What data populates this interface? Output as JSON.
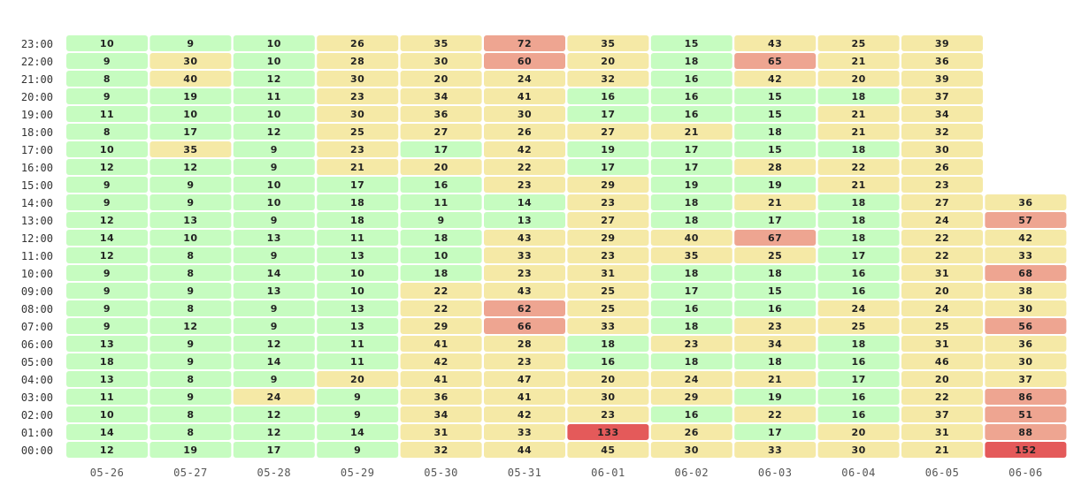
{
  "chart_data": {
    "type": "heatmap",
    "x": [
      "05-26",
      "05-27",
      "05-28",
      "05-29",
      "05-30",
      "05-31",
      "06-01",
      "06-02",
      "06-03",
      "06-04",
      "06-05",
      "06-06"
    ],
    "y": [
      "00:00",
      "01:00",
      "02:00",
      "03:00",
      "04:00",
      "05:00",
      "06:00",
      "07:00",
      "08:00",
      "09:00",
      "10:00",
      "11:00",
      "12:00",
      "13:00",
      "14:00",
      "15:00",
      "16:00",
      "17:00",
      "18:00",
      "19:00",
      "20:00",
      "21:00",
      "22:00",
      "23:00"
    ],
    "values": [
      [
        12,
        14,
        10,
        11,
        13,
        18,
        13,
        9,
        9,
        9,
        9,
        12,
        14,
        12,
        9,
        9,
        12,
        10,
        8,
        11,
        9,
        8,
        9,
        10
      ],
      [
        19,
        8,
        8,
        9,
        8,
        9,
        9,
        12,
        8,
        9,
        8,
        8,
        10,
        13,
        9,
        9,
        12,
        35,
        17,
        10,
        19,
        40,
        30,
        9
      ],
      [
        17,
        12,
        12,
        24,
        9,
        14,
        12,
        9,
        9,
        13,
        14,
        9,
        13,
        9,
        10,
        10,
        9,
        9,
        12,
        10,
        11,
        12,
        10,
        10
      ],
      [
        9,
        14,
        9,
        9,
        20,
        11,
        11,
        13,
        13,
        10,
        10,
        13,
        11,
        18,
        18,
        17,
        21,
        23,
        25,
        30,
        23,
        30,
        28,
        26
      ],
      [
        32,
        31,
        34,
        36,
        41,
        42,
        41,
        29,
        22,
        22,
        18,
        10,
        18,
        9,
        11,
        16,
        20,
        17,
        27,
        36,
        34,
        20,
        30,
        35
      ],
      [
        44,
        33,
        42,
        41,
        47,
        23,
        28,
        66,
        62,
        43,
        23,
        33,
        43,
        13,
        14,
        23,
        22,
        42,
        26,
        30,
        41,
        24,
        60,
        72
      ],
      [
        45,
        133,
        23,
        30,
        20,
        16,
        18,
        33,
        25,
        25,
        31,
        23,
        29,
        27,
        23,
        29,
        17,
        19,
        27,
        17,
        16,
        32,
        20,
        35
      ],
      [
        30,
        26,
        16,
        29,
        24,
        18,
        23,
        18,
        16,
        17,
        18,
        35,
        40,
        18,
        18,
        19,
        17,
        17,
        21,
        16,
        16,
        16,
        18,
        15
      ],
      [
        33,
        17,
        22,
        19,
        21,
        18,
        34,
        23,
        16,
        15,
        18,
        25,
        67,
        17,
        21,
        19,
        28,
        15,
        18,
        15,
        15,
        42,
        65,
        43
      ],
      [
        30,
        20,
        16,
        16,
        17,
        16,
        18,
        25,
        24,
        16,
        16,
        17,
        18,
        18,
        18,
        21,
        22,
        18,
        21,
        21,
        18,
        20,
        21,
        25
      ],
      [
        21,
        31,
        37,
        22,
        20,
        46,
        31,
        25,
        24,
        20,
        31,
        22,
        22,
        24,
        27,
        23,
        26,
        30,
        32,
        34,
        37,
        39,
        36,
        39
      ],
      [
        152,
        88,
        51,
        86,
        37,
        30,
        36,
        56,
        30,
        38,
        68,
        33,
        42,
        57,
        36,
        null,
        null,
        null,
        null,
        null,
        null,
        null,
        null,
        null
      ]
    ],
    "colors": {
      "low": "#c6fcc0",
      "mid": "#f5e9a6",
      "high": "#eea591",
      "max": "#e45a5a",
      "cell_text": "#222222",
      "axis_text": "#555555"
    }
  }
}
